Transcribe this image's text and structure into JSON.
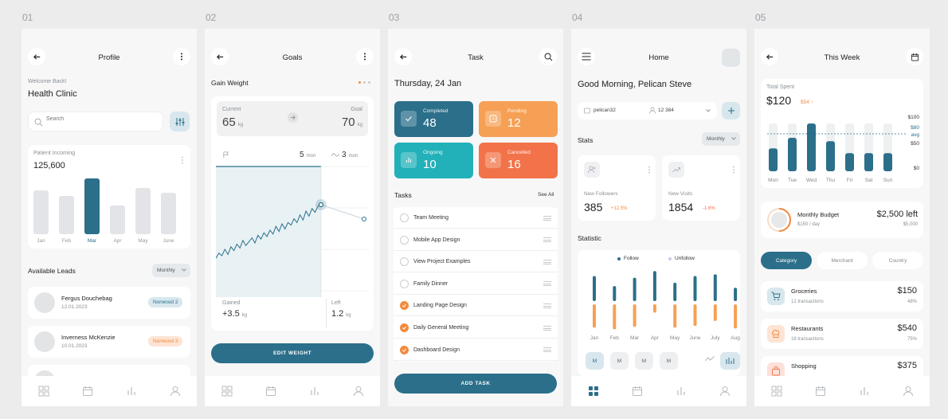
{
  "numbers": [
    "01",
    "02",
    "03",
    "04",
    "05"
  ],
  "colors": {
    "teal": "#2b6f8a",
    "orange": "#f28a3c",
    "cyan": "#22b0b9",
    "coral": "#f2734a",
    "light_orange": "#f6a055"
  },
  "profile": {
    "title": "Profile",
    "welcome": "Welcome Back!",
    "clinic": "Health Clinic",
    "search_placeholder": "Search",
    "chart_label": "Patient Incoming",
    "chart_value": "125,600",
    "leads_title": "Available Leads",
    "leads_filter": "Monthly",
    "leads": [
      {
        "name": "Fergus Douchebag",
        "date": "12.01.2023",
        "tag": "Norwood 2"
      },
      {
        "name": "Inverness McKenzie",
        "date": "10.01.2023",
        "tag": "Norwood 3"
      }
    ]
  },
  "goals": {
    "title": "Goals",
    "subtitle": "Gain Weight",
    "current_label": "Current",
    "current_value": "65",
    "current_unit": "kg",
    "goal_label": "Goal",
    "goal_value": "70",
    "goal_unit": "kg",
    "stat1_value": "5",
    "stat1_unit": "mon",
    "stat2_value": "3",
    "stat2_unit": "mon",
    "gained_label": "Gained",
    "gained_value": "+3.5",
    "gained_unit": "kg",
    "left_label": "Left",
    "left_value": "1.2",
    "left_unit": "kg",
    "button": "EDIT WEIGHT"
  },
  "task": {
    "title": "Task",
    "date": "Thursday, 24 Jan",
    "tiles": [
      {
        "label": "Completed",
        "value": "48"
      },
      {
        "label": "Pending",
        "value": "12"
      },
      {
        "label": "Ongoing",
        "value": "10"
      },
      {
        "label": "Cancelled",
        "value": "16"
      }
    ],
    "tasks_title": "Tasks",
    "see_all": "See All",
    "items": [
      {
        "label": "Team Meeting",
        "done": false
      },
      {
        "label": "Mobile App Design",
        "done": false
      },
      {
        "label": "View Project Examples",
        "done": false
      },
      {
        "label": "Family Dinner",
        "done": false
      },
      {
        "label": "Landing Page Design",
        "done": true
      },
      {
        "label": "Daily General Meeting",
        "done": true
      },
      {
        "label": "Dashboard Design",
        "done": true
      }
    ],
    "button": "ADD TASK"
  },
  "home": {
    "title": "Home",
    "greeting": "Good Morning, Pelican Steve",
    "user": "pelican32",
    "followers_count": "12 384",
    "stats_title": "Stats",
    "stats_filter": "Monthly",
    "new_followers_label": "New Followers",
    "new_followers_value": "385",
    "new_followers_change": "+12.5%",
    "new_visits_label": "New Visits",
    "new_visits_value": "1854",
    "new_visits_change": "-1.6%",
    "statistic_title": "Statistic",
    "legend_follow": "Follow",
    "legend_unfollow": "Unfollow",
    "months": [
      "Jan",
      "Feb",
      "Mar",
      "Apr",
      "May",
      "June",
      "July",
      "Aug"
    ],
    "range_buttons": [
      "M",
      "M",
      "M",
      "M"
    ]
  },
  "week": {
    "title": "This Week",
    "total_label": "Total Spent",
    "total_value": "$120",
    "total_change": "$54",
    "y_labels": [
      "$100",
      "$80",
      "avg",
      "$50",
      "$0"
    ],
    "days": [
      "Mon",
      "Tue",
      "Wed",
      "Thu",
      "Fri",
      "Sat",
      "Sun"
    ],
    "budget_label": "Monthly Budget",
    "budget_rate": "$150 / day",
    "budget_left": "$2,500 left",
    "budget_total": "$5,000",
    "tabs": [
      "Category",
      "Merchant",
      "Country"
    ],
    "categories": [
      {
        "name": "Groceries",
        "tx": "12 transactions",
        "amount": "$150",
        "pct": "48%"
      },
      {
        "name": "Restaurants",
        "tx": "16 transactions",
        "amount": "$540",
        "pct": "75%"
      },
      {
        "name": "Shopping",
        "tx": "",
        "amount": "$375",
        "pct": ""
      }
    ]
  },
  "chart_data": [
    {
      "type": "bar",
      "categories": [
        "Jan",
        "Feb",
        "Mar",
        "Apr",
        "May",
        "June"
      ],
      "values": [
        55,
        48,
        70,
        36,
        58,
        52
      ],
      "title": "Patient Incoming"
    },
    {
      "type": "line",
      "x": [
        1,
        2,
        3,
        4,
        5,
        6,
        7,
        8,
        9,
        10,
        11,
        12,
        13,
        14,
        15,
        16,
        17,
        18,
        19,
        20,
        21,
        22,
        23,
        24,
        25,
        26,
        27,
        28,
        29,
        30,
        31,
        32,
        33,
        34,
        35,
        36
      ],
      "values": [
        8,
        12,
        10,
        15,
        11,
        17,
        14,
        19,
        16,
        22,
        18,
        21,
        24,
        20,
        26,
        23,
        28,
        25,
        30,
        27,
        33,
        29,
        35,
        31,
        36,
        34,
        39,
        36,
        42,
        38,
        45,
        41,
        47,
        44,
        49,
        50
      ]
    },
    {
      "type": "bar",
      "categories": [
        "Jan",
        "Feb",
        "Mar",
        "Apr",
        "May",
        "June",
        "July",
        "Aug"
      ],
      "series": [
        {
          "name": "Follow",
          "values": [
            30,
            18,
            28,
            36,
            22,
            30,
            32,
            16
          ]
        },
        {
          "name": "Unfollow",
          "values": [
            -28,
            -30,
            -27,
            -10,
            -28,
            -26,
            -20,
            -29
          ]
        }
      ]
    },
    {
      "type": "bar",
      "categories": [
        "Mon",
        "Tue",
        "Wed",
        "Thu",
        "Fri",
        "Sat",
        "Sun"
      ],
      "values": [
        48,
        70,
        100,
        63,
        38,
        38,
        38
      ],
      "ylim": [
        0,
        100
      ]
    }
  ]
}
